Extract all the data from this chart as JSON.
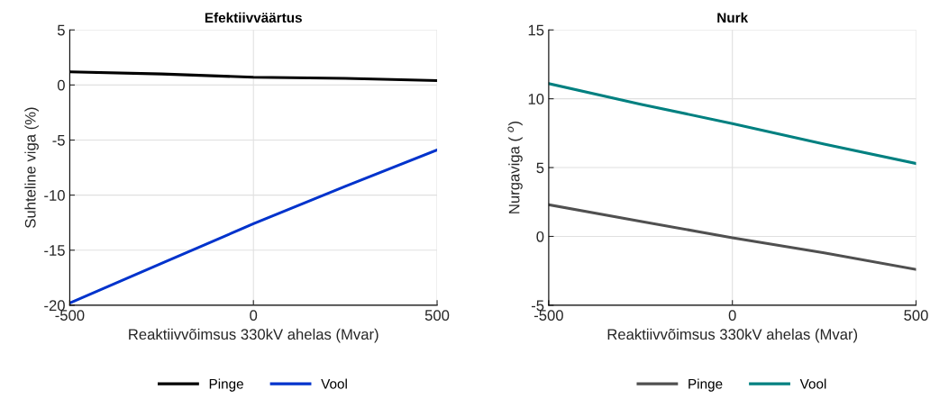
{
  "chart_data": [
    {
      "type": "line",
      "title": "Efektiivväärtus",
      "xlabel": "Reaktiivvõimsus 330kV ahelas (Mvar)",
      "ylabel": "Suhteline viga (%)",
      "x": [
        -500,
        -250,
        0,
        250,
        500
      ],
      "xlim": [
        -500,
        500
      ],
      "xticks": [
        -500,
        0,
        500
      ],
      "ylim": [
        -20,
        5
      ],
      "yticks": [
        -20,
        -15,
        -10,
        -5,
        0,
        5
      ],
      "grid": true,
      "legend": "bottom",
      "series": [
        {
          "name": "Pinge",
          "color": "#000000",
          "values": [
            1.2,
            1.0,
            0.7,
            0.6,
            0.4
          ]
        },
        {
          "name": "Vool",
          "color": "#0033cc",
          "values": [
            -19.8,
            -16.2,
            -12.6,
            -9.2,
            -5.9
          ]
        }
      ]
    },
    {
      "type": "line",
      "title": "Nurk",
      "xlabel": "Reaktiivvõimsus 330kV ahelas (Mvar)",
      "ylabel": "Nurgaviga ( $^{o}$)",
      "x": [
        -500,
        -250,
        0,
        250,
        500
      ],
      "xlim": [
        -500,
        500
      ],
      "xticks": [
        -500,
        0,
        500
      ],
      "ylim": [
        -5,
        15
      ],
      "yticks": [
        -5,
        0,
        5,
        10,
        15
      ],
      "grid": true,
      "legend": "bottom",
      "series": [
        {
          "name": "Pinge",
          "color": "#505050",
          "values": [
            2.3,
            1.1,
            -0.1,
            -1.2,
            -2.4
          ]
        },
        {
          "name": "Vool",
          "color": "#008080",
          "values": [
            11.1,
            9.6,
            8.2,
            6.7,
            5.3
          ]
        }
      ]
    }
  ]
}
